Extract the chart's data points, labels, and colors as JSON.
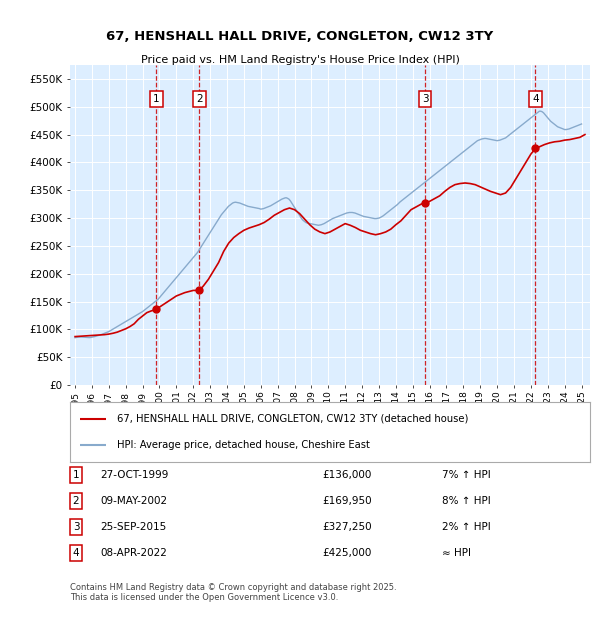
{
  "title": "67, HENSHALL HALL DRIVE, CONGLETON, CW12 3TY",
  "subtitle": "Price paid vs. HM Land Registry's House Price Index (HPI)",
  "hpi_label": "HPI: Average price, detached house, Cheshire East",
  "property_label": "67, HENSHALL HALL DRIVE, CONGLETON, CW12 3TY (detached house)",
  "red_color": "#cc0000",
  "blue_color": "#88aacc",
  "background_chart": "#ddeeff",
  "grid_color": "#ffffff",
  "ylim": [
    0,
    575000
  ],
  "yticks": [
    0,
    50000,
    100000,
    150000,
    200000,
    250000,
    300000,
    350000,
    400000,
    450000,
    500000,
    550000
  ],
  "xlim_start": 1994.7,
  "xlim_end": 2025.5,
  "sales": [
    {
      "num": 1,
      "date": "27-OCT-1999",
      "price": 136000,
      "year": 1999.82,
      "pct": "7%",
      "dir": "↑"
    },
    {
      "num": 2,
      "date": "09-MAY-2002",
      "price": 169950,
      "year": 2002.36,
      "pct": "8%",
      "dir": "↑"
    },
    {
      "num": 3,
      "date": "25-SEP-2015",
      "price": 327250,
      "year": 2015.73,
      "pct": "2%",
      "dir": "↑"
    },
    {
      "num": 4,
      "date": "08-APR-2022",
      "price": 425000,
      "year": 2022.27,
      "pct": "≈",
      "dir": ""
    }
  ],
  "footnote": "Contains HM Land Registry data © Crown copyright and database right 2025.\nThis data is licensed under the Open Government Licence v3.0.",
  "hpi_years": [
    1995.0,
    1995.083,
    1995.167,
    1995.25,
    1995.333,
    1995.417,
    1995.5,
    1995.583,
    1995.667,
    1995.75,
    1995.833,
    1995.917,
    1996.0,
    1996.083,
    1996.167,
    1996.25,
    1996.333,
    1996.417,
    1996.5,
    1996.583,
    1996.667,
    1996.75,
    1996.833,
    1996.917,
    1997.0,
    1997.083,
    1997.167,
    1997.25,
    1997.333,
    1997.417,
    1997.5,
    1997.583,
    1997.667,
    1997.75,
    1997.833,
    1997.917,
    1998.0,
    1998.083,
    1998.167,
    1998.25,
    1998.333,
    1998.417,
    1998.5,
    1998.583,
    1998.667,
    1998.75,
    1998.833,
    1998.917,
    1999.0,
    1999.083,
    1999.167,
    1999.25,
    1999.333,
    1999.417,
    1999.5,
    1999.583,
    1999.667,
    1999.75,
    1999.833,
    1999.917,
    2000.0,
    2000.083,
    2000.167,
    2000.25,
    2000.333,
    2000.417,
    2000.5,
    2000.583,
    2000.667,
    2000.75,
    2000.833,
    2000.917,
    2001.0,
    2001.083,
    2001.167,
    2001.25,
    2001.333,
    2001.417,
    2001.5,
    2001.583,
    2001.667,
    2001.75,
    2001.833,
    2001.917,
    2002.0,
    2002.083,
    2002.167,
    2002.25,
    2002.333,
    2002.417,
    2002.5,
    2002.583,
    2002.667,
    2002.75,
    2002.833,
    2002.917,
    2003.0,
    2003.083,
    2003.167,
    2003.25,
    2003.333,
    2003.417,
    2003.5,
    2003.583,
    2003.667,
    2003.75,
    2003.833,
    2003.917,
    2004.0,
    2004.083,
    2004.167,
    2004.25,
    2004.333,
    2004.417,
    2004.5,
    2004.583,
    2004.667,
    2004.75,
    2004.833,
    2004.917,
    2005.0,
    2005.083,
    2005.167,
    2005.25,
    2005.333,
    2005.417,
    2005.5,
    2005.583,
    2005.667,
    2005.75,
    2005.833,
    2005.917,
    2006.0,
    2006.083,
    2006.167,
    2006.25,
    2006.333,
    2006.417,
    2006.5,
    2006.583,
    2006.667,
    2006.75,
    2006.833,
    2006.917,
    2007.0,
    2007.083,
    2007.167,
    2007.25,
    2007.333,
    2007.417,
    2007.5,
    2007.583,
    2007.667,
    2007.75,
    2007.833,
    2007.917,
    2008.0,
    2008.083,
    2008.167,
    2008.25,
    2008.333,
    2008.417,
    2008.5,
    2008.583,
    2008.667,
    2008.75,
    2008.833,
    2008.917,
    2009.0,
    2009.083,
    2009.167,
    2009.25,
    2009.333,
    2009.417,
    2009.5,
    2009.583,
    2009.667,
    2009.75,
    2009.833,
    2009.917,
    2010.0,
    2010.083,
    2010.167,
    2010.25,
    2010.333,
    2010.417,
    2010.5,
    2010.583,
    2010.667,
    2010.75,
    2010.833,
    2010.917,
    2011.0,
    2011.083,
    2011.167,
    2011.25,
    2011.333,
    2011.417,
    2011.5,
    2011.583,
    2011.667,
    2011.75,
    2011.833,
    2011.917,
    2012.0,
    2012.083,
    2012.167,
    2012.25,
    2012.333,
    2012.417,
    2012.5,
    2012.583,
    2012.667,
    2012.75,
    2012.833,
    2012.917,
    2013.0,
    2013.083,
    2013.167,
    2013.25,
    2013.333,
    2013.417,
    2013.5,
    2013.583,
    2013.667,
    2013.75,
    2013.833,
    2013.917,
    2014.0,
    2014.083,
    2014.167,
    2014.25,
    2014.333,
    2014.417,
    2014.5,
    2014.583,
    2014.667,
    2014.75,
    2014.833,
    2014.917,
    2015.0,
    2015.083,
    2015.167,
    2015.25,
    2015.333,
    2015.417,
    2015.5,
    2015.583,
    2015.667,
    2015.75,
    2015.833,
    2015.917,
    2016.0,
    2016.083,
    2016.167,
    2016.25,
    2016.333,
    2016.417,
    2016.5,
    2016.583,
    2016.667,
    2016.75,
    2016.833,
    2016.917,
    2017.0,
    2017.083,
    2017.167,
    2017.25,
    2017.333,
    2017.417,
    2017.5,
    2017.583,
    2017.667,
    2017.75,
    2017.833,
    2017.917,
    2018.0,
    2018.083,
    2018.167,
    2018.25,
    2018.333,
    2018.417,
    2018.5,
    2018.583,
    2018.667,
    2018.75,
    2018.833,
    2018.917,
    2019.0,
    2019.083,
    2019.167,
    2019.25,
    2019.333,
    2019.417,
    2019.5,
    2019.583,
    2019.667,
    2019.75,
    2019.833,
    2019.917,
    2020.0,
    2020.083,
    2020.167,
    2020.25,
    2020.333,
    2020.417,
    2020.5,
    2020.583,
    2020.667,
    2020.75,
    2020.833,
    2020.917,
    2021.0,
    2021.083,
    2021.167,
    2021.25,
    2021.333,
    2021.417,
    2021.5,
    2021.583,
    2021.667,
    2021.75,
    2021.833,
    2021.917,
    2022.0,
    2022.083,
    2022.167,
    2022.25,
    2022.333,
    2022.417,
    2022.5,
    2022.583,
    2022.667,
    2022.75,
    2022.833,
    2022.917,
    2023.0,
    2023.083,
    2023.167,
    2023.25,
    2023.333,
    2023.417,
    2023.5,
    2023.583,
    2023.667,
    2023.75,
    2023.833,
    2023.917,
    2024.0,
    2024.083,
    2024.167,
    2024.25,
    2024.333,
    2024.417,
    2024.5,
    2024.583,
    2024.667,
    2024.75,
    2024.833,
    2024.917,
    2025.0
  ],
  "hpi_values": [
    85000,
    85500,
    86000,
    86200,
    86300,
    86200,
    86000,
    85800,
    85500,
    85300,
    85200,
    85400,
    86000,
    86500,
    87000,
    87800,
    88500,
    89200,
    90000,
    91000,
    92000,
    93000,
    94000,
    95000,
    96000,
    97500,
    99000,
    100500,
    102000,
    103500,
    105000,
    106500,
    108000,
    109500,
    111000,
    112500,
    114000,
    115500,
    117000,
    118500,
    120000,
    121500,
    123000,
    124500,
    126000,
    127500,
    129000,
    130500,
    132000,
    134000,
    136000,
    138000,
    140000,
    142000,
    144000,
    146000,
    148000,
    150000,
    152000,
    154000,
    157000,
    160000,
    163000,
    166000,
    169000,
    172000,
    175000,
    178000,
    181000,
    184000,
    187000,
    190000,
    193000,
    196000,
    199000,
    202000,
    205000,
    208000,
    211000,
    214000,
    217000,
    220000,
    223000,
    226000,
    229000,
    232000,
    235000,
    238000,
    242000,
    246000,
    250000,
    254000,
    258000,
    262000,
    266000,
    270000,
    274000,
    278000,
    282000,
    286000,
    290000,
    294000,
    298000,
    302000,
    306000,
    309000,
    312000,
    315000,
    318000,
    321000,
    323000,
    325000,
    327000,
    328000,
    328500,
    328000,
    327500,
    327000,
    326000,
    325000,
    324000,
    323000,
    322000,
    321000,
    320500,
    320000,
    319500,
    319000,
    318500,
    318000,
    317500,
    317000,
    316000,
    316500,
    317000,
    318000,
    319000,
    320000,
    321000,
    322000,
    323500,
    325000,
    326500,
    328000,
    329500,
    331000,
    332500,
    334000,
    335000,
    336000,
    336500,
    335500,
    334000,
    331000,
    327000,
    323000,
    319000,
    315000,
    311000,
    307000,
    303000,
    299000,
    296000,
    294000,
    292000,
    291000,
    290500,
    290000,
    289500,
    289000,
    288500,
    288000,
    287500,
    287000,
    287500,
    288000,
    289000,
    290000,
    291500,
    293000,
    294500,
    296000,
    297500,
    299000,
    300000,
    301000,
    302000,
    303000,
    304000,
    305000,
    306000,
    307000,
    308000,
    309000,
    309500,
    310000,
    310000,
    310000,
    309500,
    309000,
    308000,
    307000,
    306000,
    305000,
    304000,
    303000,
    302500,
    302000,
    301500,
    301000,
    300500,
    300000,
    299500,
    299000,
    299000,
    299500,
    300000,
    301000,
    302500,
    304000,
    306000,
    308000,
    310000,
    312000,
    314000,
    316000,
    318000,
    320000,
    322000,
    324000,
    326500,
    329000,
    331000,
    333000,
    335000,
    337000,
    339000,
    341000,
    343000,
    345000,
    347000,
    349000,
    351000,
    353000,
    355000,
    357000,
    359000,
    361000,
    363000,
    365000,
    367000,
    369000,
    371000,
    373000,
    375000,
    377000,
    379000,
    381000,
    383000,
    385000,
    387000,
    389000,
    391000,
    393000,
    395000,
    397000,
    399000,
    401000,
    403000,
    405000,
    407000,
    409000,
    411000,
    413000,
    415000,
    417000,
    419000,
    421000,
    423000,
    425000,
    427000,
    429000,
    431000,
    433000,
    435000,
    437000,
    439000,
    440000,
    441000,
    442000,
    442500,
    443000,
    443000,
    442500,
    442000,
    441500,
    441000,
    440500,
    440000,
    439500,
    439000,
    439500,
    440000,
    441000,
    442000,
    443000,
    444000,
    446000,
    448000,
    450000,
    452000,
    454000,
    456000,
    458000,
    460000,
    462000,
    464000,
    466000,
    468000,
    470000,
    472000,
    474000,
    476000,
    478000,
    480000,
    482000,
    484000,
    486000,
    488000,
    490000,
    492000,
    492000,
    491000,
    489000,
    486000,
    483000,
    480000,
    477000,
    474000,
    472000,
    470000,
    468000,
    466000,
    464000,
    463000,
    462000,
    461000,
    460000,
    459000,
    459000,
    459500,
    460000,
    461000,
    462000,
    463000,
    464000,
    465000,
    466000,
    467000,
    468000,
    469000
  ],
  "red_years": [
    1995.0,
    1995.25,
    1995.5,
    1995.75,
    1996.0,
    1996.25,
    1996.5,
    1996.75,
    1997.0,
    1997.25,
    1997.5,
    1997.75,
    1998.0,
    1998.25,
    1998.5,
    1998.75,
    1999.0,
    1999.25,
    1999.5,
    1999.82,
    2000.0,
    2000.25,
    2000.5,
    2000.75,
    2001.0,
    2001.25,
    2001.5,
    2001.75,
    2002.0,
    2002.36,
    2002.6,
    2002.9,
    2003.2,
    2003.5,
    2003.8,
    2004.1,
    2004.4,
    2004.7,
    2005.0,
    2005.3,
    2005.6,
    2005.9,
    2006.2,
    2006.5,
    2006.8,
    2007.1,
    2007.4,
    2007.7,
    2008.0,
    2008.3,
    2008.6,
    2008.9,
    2009.2,
    2009.5,
    2009.8,
    2010.1,
    2010.4,
    2010.7,
    2011.0,
    2011.3,
    2011.6,
    2011.9,
    2012.2,
    2012.5,
    2012.8,
    2013.1,
    2013.4,
    2013.7,
    2014.0,
    2014.3,
    2014.6,
    2014.9,
    2015.2,
    2015.5,
    2015.73,
    2016.0,
    2016.3,
    2016.6,
    2016.9,
    2017.2,
    2017.5,
    2017.8,
    2018.1,
    2018.4,
    2018.7,
    2019.0,
    2019.3,
    2019.6,
    2019.9,
    2020.2,
    2020.5,
    2020.8,
    2021.1,
    2021.4,
    2021.7,
    2022.0,
    2022.27,
    2022.5,
    2022.8,
    2023.1,
    2023.4,
    2023.7,
    2024.0,
    2024.3,
    2024.6,
    2024.9,
    2025.2
  ],
  "red_values": [
    87000,
    87500,
    88000,
    88500,
    89000,
    89500,
    90000,
    90500,
    91500,
    93000,
    95000,
    98000,
    101000,
    105000,
    110000,
    118000,
    124000,
    130000,
    133000,
    136000,
    140000,
    145000,
    150000,
    155000,
    160000,
    163000,
    166000,
    168000,
    169950,
    169950,
    178000,
    190000,
    205000,
    220000,
    240000,
    255000,
    265000,
    272000,
    278000,
    282000,
    285000,
    288000,
    292000,
    298000,
    305000,
    310000,
    315000,
    318000,
    315000,
    308000,
    298000,
    288000,
    280000,
    275000,
    272000,
    275000,
    280000,
    285000,
    290000,
    287000,
    283000,
    278000,
    275000,
    272000,
    270000,
    272000,
    275000,
    280000,
    288000,
    295000,
    305000,
    315000,
    320000,
    325000,
    327250,
    330000,
    335000,
    340000,
    348000,
    355000,
    360000,
    362000,
    363000,
    362000,
    360000,
    356000,
    352000,
    348000,
    345000,
    342000,
    345000,
    355000,
    370000,
    385000,
    400000,
    415000,
    425000,
    428000,
    432000,
    435000,
    437000,
    438000,
    440000,
    441000,
    443000,
    445000,
    450000
  ]
}
